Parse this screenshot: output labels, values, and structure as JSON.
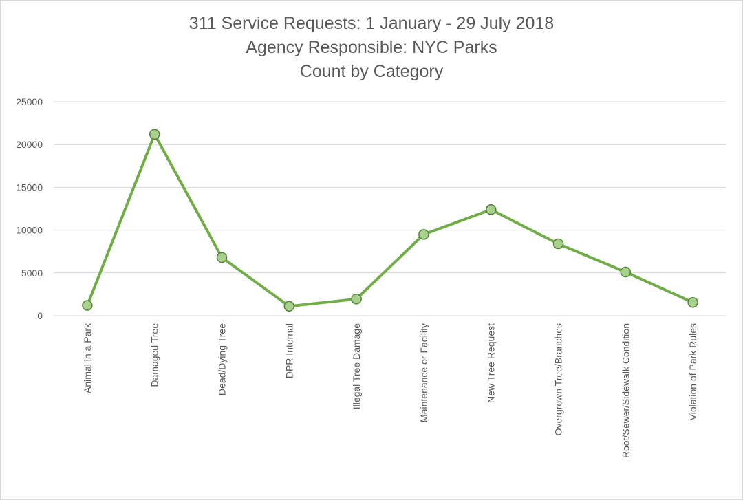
{
  "chart_data": {
    "type": "line",
    "title_lines": [
      "311 Service Requests: 1 January - 29 July 2018",
      "Agency Responsible:  NYC Parks",
      "Count by Category"
    ],
    "categories": [
      "Animal in a Park",
      "Damaged Tree",
      "Dead/Dying Tree",
      "DPR Internal",
      "Illegal Tree Damage",
      "Maintenance or Facility",
      "New Tree Request",
      "Overgrown Tree/Branches",
      "Root/Sewer/Sidewalk Condition",
      "Violation of Park Rules"
    ],
    "values": [
      1200,
      21200,
      6800,
      1100,
      1950,
      9500,
      12400,
      8400,
      5100,
      1550
    ],
    "ylim": [
      0,
      25000
    ],
    "yticks": [
      0,
      5000,
      10000,
      15000,
      20000,
      25000
    ],
    "grid": true,
    "legend": "none",
    "colors": {
      "line": "#70ad47",
      "marker_fill": "#a9d18e",
      "marker_edge": "#548235",
      "grid": "#d9d9d9",
      "text": "#595959"
    }
  }
}
